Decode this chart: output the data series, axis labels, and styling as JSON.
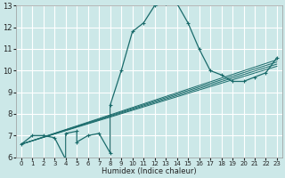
{
  "title": "",
  "xlabel": "Humidex (Indice chaleur)",
  "bg_color": "#cce8e8",
  "grid_color": "#ffffff",
  "line_color": "#1a6b6b",
  "xlim": [
    -0.5,
    23.5
  ],
  "ylim": [
    6,
    13
  ],
  "xticks": [
    0,
    1,
    2,
    3,
    4,
    5,
    6,
    7,
    8,
    9,
    10,
    11,
    12,
    13,
    14,
    15,
    16,
    17,
    18,
    19,
    20,
    21,
    22,
    23
  ],
  "yticks": [
    6,
    7,
    8,
    9,
    10,
    11,
    12,
    13
  ],
  "main_series": {
    "x": [
      0,
      1,
      2,
      3,
      4,
      4,
      5,
      5,
      6,
      7,
      8,
      8,
      9,
      10,
      11,
      12,
      13,
      14,
      15,
      16,
      17,
      18,
      19,
      20,
      21,
      22,
      23
    ],
    "y": [
      6.6,
      7.0,
      7.0,
      6.9,
      5.9,
      7.1,
      7.2,
      6.7,
      7.0,
      7.1,
      6.2,
      8.4,
      10.0,
      11.8,
      12.2,
      13.0,
      13.1,
      13.1,
      12.2,
      11.0,
      10.0,
      9.8,
      9.5,
      9.5,
      9.7,
      9.9,
      10.6
    ]
  },
  "trend_lines": [
    {
      "x": [
        0,
        23
      ],
      "y": [
        6.6,
        10.2
      ]
    },
    {
      "x": [
        0,
        23
      ],
      "y": [
        6.6,
        10.3
      ]
    },
    {
      "x": [
        0,
        23
      ],
      "y": [
        6.6,
        10.4
      ]
    },
    {
      "x": [
        0,
        23
      ],
      "y": [
        6.6,
        10.5
      ]
    }
  ]
}
